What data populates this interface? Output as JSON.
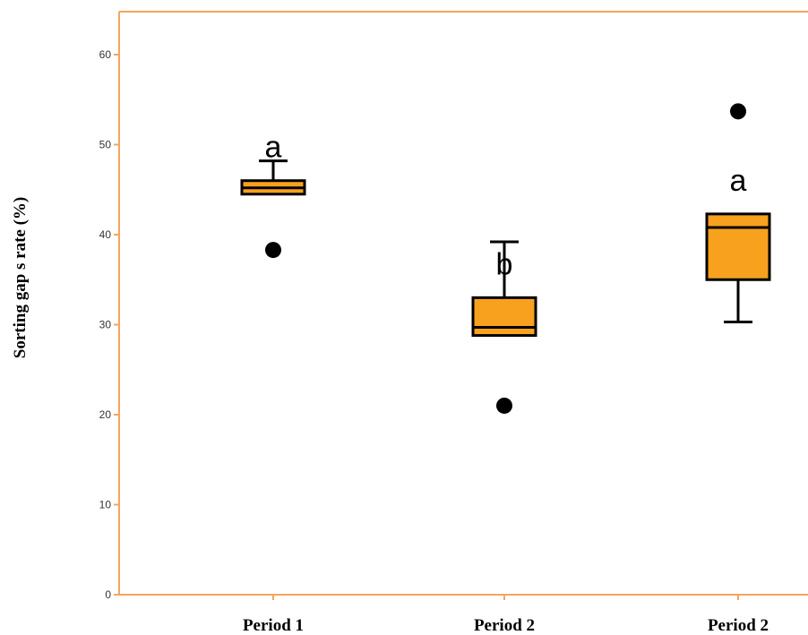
{
  "chart_data": {
    "type": "box",
    "ylabel": "Sorting gap s rate  (%)",
    "xlabel": "",
    "ylim": [
      0,
      65
    ],
    "yticks": [
      0,
      10,
      20,
      30,
      40,
      50,
      60
    ],
    "grid": false,
    "colors": {
      "box_fill": "#f7a11f",
      "box_stroke": "#000000",
      "axis": "#f4a460"
    },
    "categories": [
      "Period 1",
      "Period 2",
      "Period 2"
    ],
    "boxes": [
      {
        "label": "Period 1",
        "whisker_low": 44.5,
        "q1": 44.5,
        "median": 45.2,
        "q3": 46.0,
        "whisker_high": 48.2,
        "outliers": [
          38.3
        ],
        "significance": "a"
      },
      {
        "label": "Period 2",
        "whisker_low": 28.8,
        "q1": 28.8,
        "median": 29.7,
        "q3": 33.0,
        "whisker_high": 39.2,
        "outliers": [
          21.0
        ],
        "significance": "b"
      },
      {
        "label": "Period 2",
        "whisker_low": 30.3,
        "q1": 35.0,
        "median": 40.8,
        "q3": 42.3,
        "whisker_high": 42.3,
        "outliers": [
          53.7
        ],
        "significance": "a"
      }
    ]
  }
}
